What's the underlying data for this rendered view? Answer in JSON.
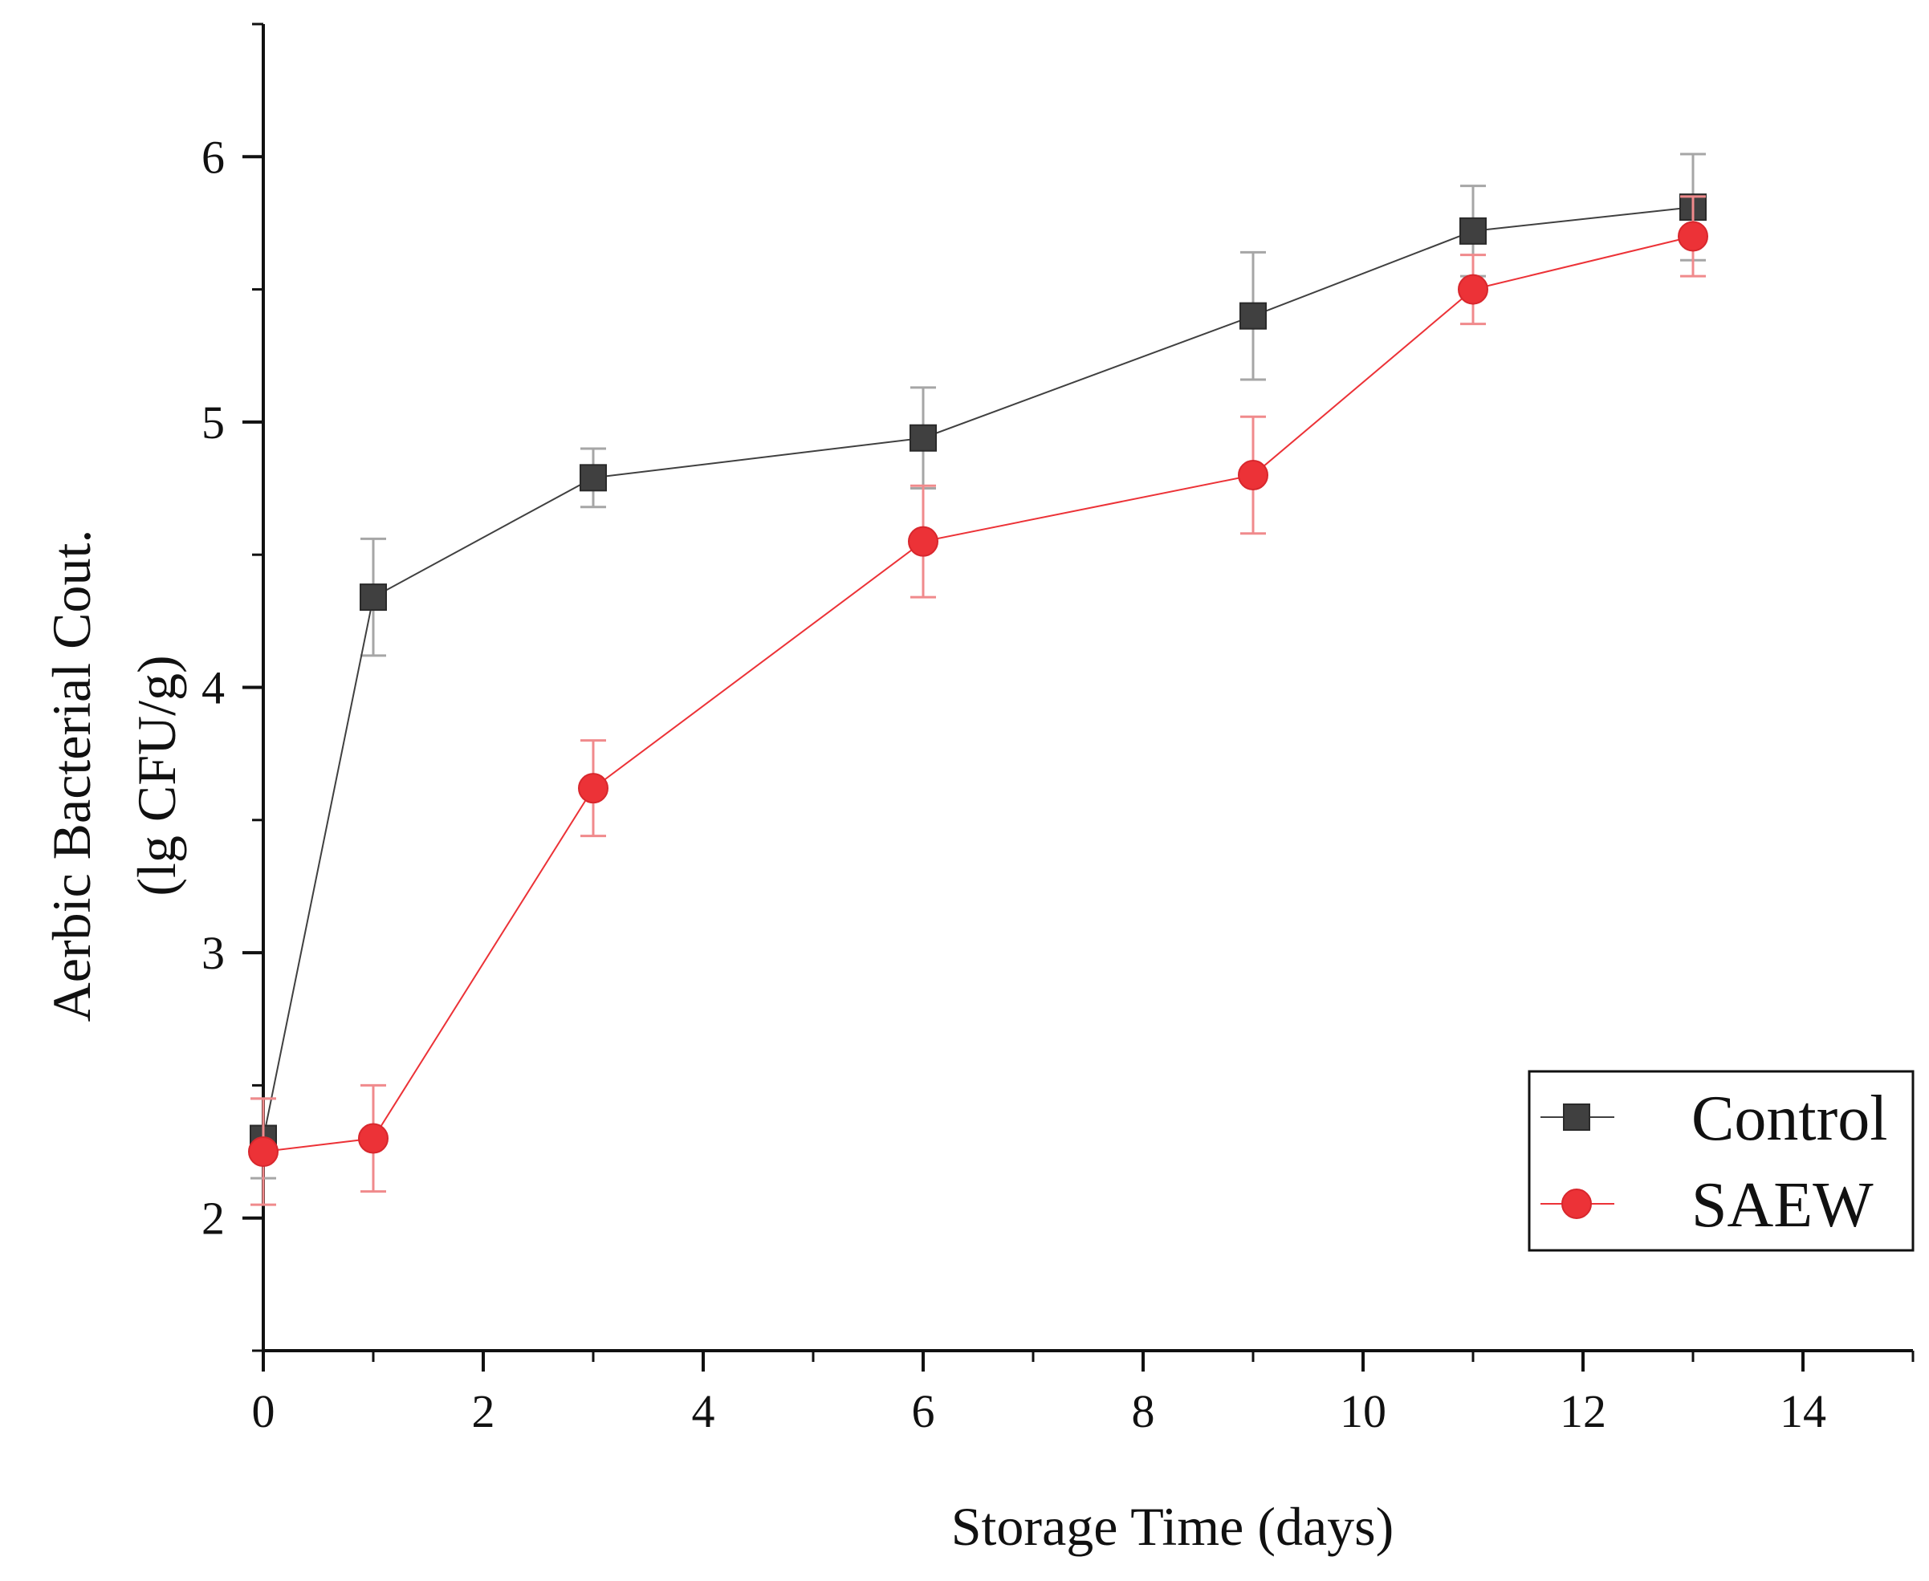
{
  "chart_data": {
    "type": "line",
    "title": "",
    "xlabel": "Storage Time (days)",
    "ylabel_lines": [
      "Aerbic Bacterial Cout.",
      "(lg CFU/g)"
    ],
    "xlim": [
      0,
      15
    ],
    "ylim": [
      1.5,
      6.5
    ],
    "xticks": [
      0,
      2,
      4,
      6,
      8,
      10,
      12,
      14
    ],
    "xticks_minor": [
      1,
      3,
      5,
      7,
      9,
      11,
      13,
      15
    ],
    "yticks": [
      2,
      3,
      4,
      5,
      6
    ],
    "yticks_minor": [
      1.5,
      2.5,
      3.5,
      4.5,
      5.5,
      6.5
    ],
    "grid": false,
    "legend_position": "lower-right",
    "series": [
      {
        "name": "Control",
        "marker": "square",
        "color": "#404040",
        "errorbar_color": "#a6a6a6",
        "x": [
          0,
          1,
          3,
          6,
          9,
          11,
          13
        ],
        "y": [
          2.3,
          4.34,
          4.79,
          4.94,
          5.4,
          5.72,
          5.81
        ],
        "error": [
          0.15,
          0.22,
          0.11,
          0.19,
          0.24,
          0.17,
          0.2
        ]
      },
      {
        "name": "SAEW",
        "marker": "circle",
        "color": "#ec3237",
        "errorbar_color": "#f08a8c",
        "x": [
          0,
          1,
          3,
          6,
          9,
          11,
          13
        ],
        "y": [
          2.25,
          2.3,
          3.62,
          4.55,
          4.8,
          5.5,
          5.7
        ],
        "error": [
          0.2,
          0.2,
          0.18,
          0.21,
          0.22,
          0.13,
          0.15
        ]
      }
    ]
  }
}
